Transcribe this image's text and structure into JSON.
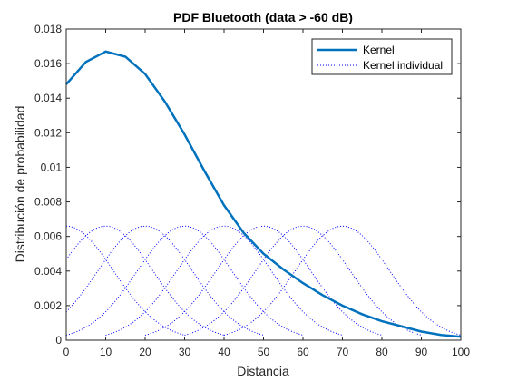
{
  "chart_data": {
    "type": "line",
    "title": "PDF Bluetooth (data > -60 dB)",
    "xlabel": "Distancia",
    "ylabel": "Distribución de probabilidad",
    "xlim": [
      0,
      100
    ],
    "ylim": [
      0,
      0.018
    ],
    "xticks": [
      "0",
      "10",
      "20",
      "30",
      "40",
      "50",
      "60",
      "70",
      "80",
      "90",
      "100"
    ],
    "yticks": [
      "0",
      "0.002",
      "0.004",
      "0.006",
      "0.008",
      "0.01",
      "0.012",
      "0.014",
      "0.016",
      "0.018"
    ],
    "grid": false,
    "legend_position": "top-right",
    "legend": [
      "Kernel",
      "Kernel individual"
    ],
    "series": [
      {
        "name": "Kernel",
        "style": "solid",
        "color": "#0072bd",
        "x": [
          0,
          5,
          10,
          15,
          20,
          25,
          30,
          35,
          40,
          45,
          50,
          55,
          60,
          65,
          70,
          75,
          80,
          85,
          90,
          95,
          100
        ],
        "y": [
          0.0148,
          0.0161,
          0.0167,
          0.0164,
          0.0154,
          0.0138,
          0.0119,
          0.0098,
          0.0078,
          0.0062,
          0.005,
          0.0041,
          0.0033,
          0.0026,
          0.002,
          0.0015,
          0.0011,
          0.0008,
          0.0005,
          0.0003,
          0.0002
        ]
      },
      {
        "name": "Kernel individual",
        "style": "dotted",
        "color": "#0000ff",
        "centers": [
          0,
          10,
          20,
          30,
          40,
          50,
          60,
          70
        ],
        "peak": 0.0066,
        "sigma": 12
      }
    ]
  }
}
